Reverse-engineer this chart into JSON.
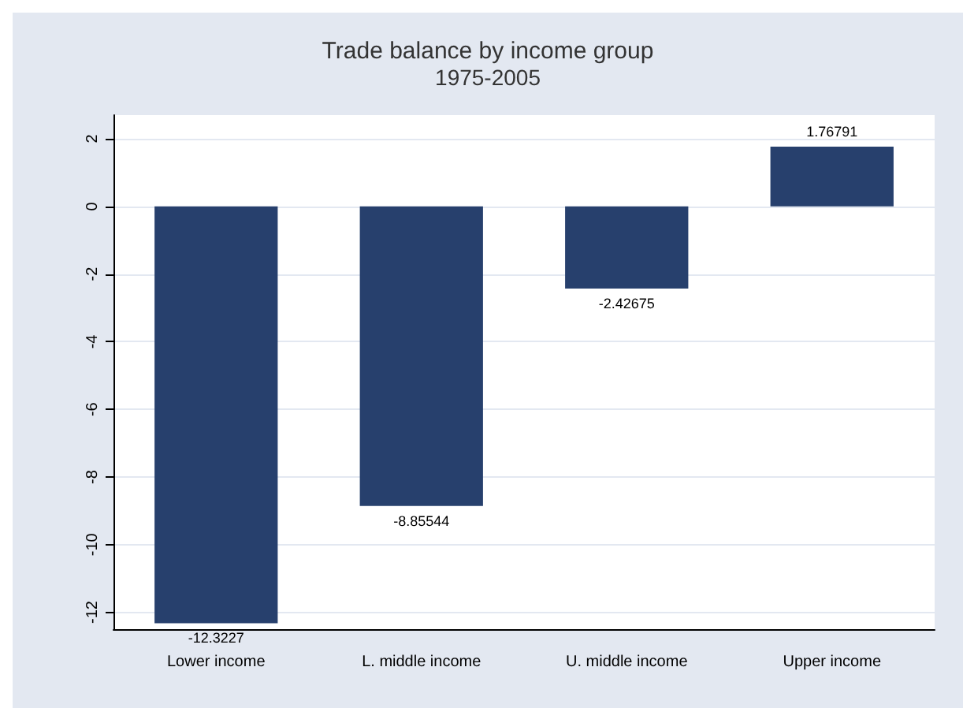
{
  "chart_data": {
    "type": "bar",
    "title": "Trade balance by income group",
    "subtitle": "1975-2005",
    "categories": [
      "Lower income",
      "L. middle income",
      "U. middle income",
      "Upper income"
    ],
    "values": [
      -12.3227,
      -8.85544,
      -2.42675,
      1.76791
    ],
    "color": "#27406d",
    "ylim": [
      -12.5,
      2.7
    ],
    "yticks": [
      -12,
      -10,
      -8,
      -6,
      -4,
      -2,
      0,
      2
    ],
    "grid": "y",
    "data_labels": true
  }
}
